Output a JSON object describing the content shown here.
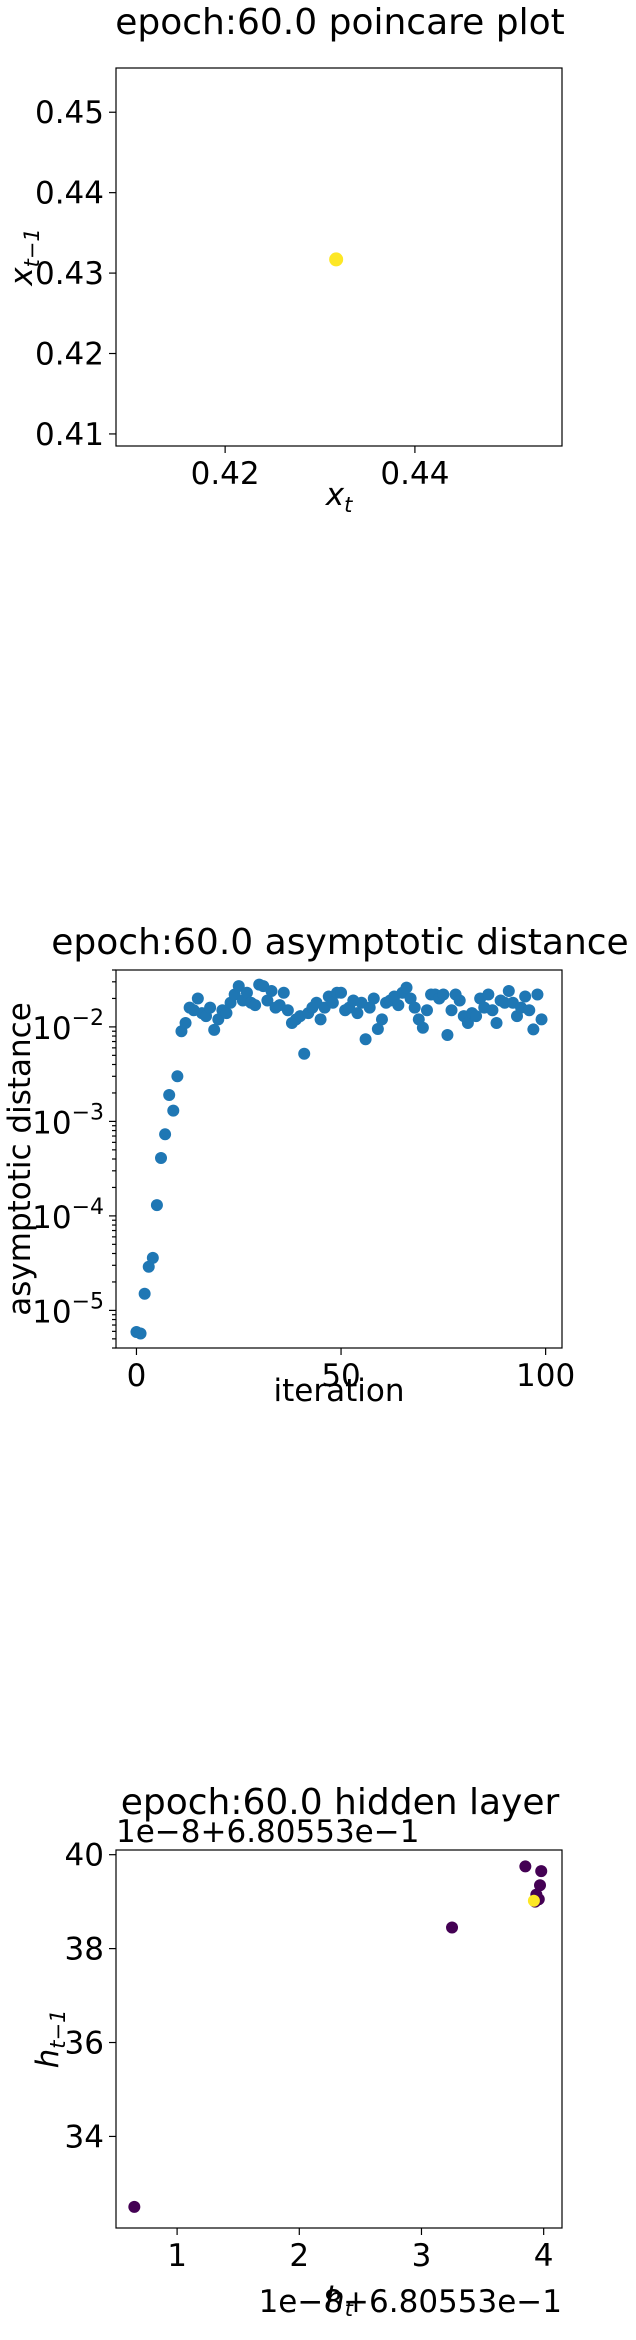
{
  "chart_data": [
    {
      "type": "scatter",
      "title": "epoch:60.0 poincare plot",
      "xlabel": "x_t",
      "ylabel": "x_{t-1}",
      "xlim": [
        0.4085,
        0.4555
      ],
      "ylim": [
        0.4085,
        0.4555
      ],
      "xticks": [
        "0.42",
        "0.44"
      ],
      "yticks": [
        "0.41",
        "0.42",
        "0.43",
        "0.44",
        "0.45"
      ],
      "x": [
        0.4317
      ],
      "y": [
        0.4317
      ],
      "color": "#fde725",
      "grid": false,
      "legend": "none"
    },
    {
      "type": "scatter",
      "title": "epoch:60.0 asymptotic distance",
      "xlabel": "iteration",
      "ylabel": "asymptotic distance",
      "yscale": "log",
      "xlim": [
        -5,
        104
      ],
      "ylim": [
        4e-06,
        0.04
      ],
      "xticks": [
        "0",
        "50",
        "100"
      ],
      "yticks": [
        "10^{-5}",
        "10^{-4}",
        "10^{-3}",
        "10^{-2}"
      ],
      "color": "#1f77b4",
      "x": [
        0,
        1,
        2,
        3,
        4,
        5,
        6,
        7,
        8,
        9,
        10,
        11,
        12,
        13,
        14,
        15,
        16,
        17,
        18,
        19,
        20,
        21,
        22,
        23,
        24,
        25,
        26,
        27,
        28,
        29,
        30,
        31,
        32,
        33,
        34,
        35,
        36,
        37,
        38,
        39,
        40,
        41,
        42,
        43,
        44,
        45,
        46,
        47,
        48,
        49,
        50,
        51,
        52,
        53,
        54,
        55,
        56,
        57,
        58,
        59,
        60,
        61,
        62,
        63,
        64,
        65,
        66,
        67,
        68,
        69,
        70,
        71,
        72,
        73,
        74,
        75,
        76,
        77,
        78,
        79,
        80,
        81,
        82,
        83,
        84,
        85,
        86,
        87,
        88,
        89,
        90,
        91,
        92,
        93,
        94,
        95,
        96,
        97,
        98,
        99
      ],
      "y": [
        5.9e-06,
        5.7e-06,
        1.5e-05,
        2.9e-05,
        3.6e-05,
        0.00013,
        0.00041,
        0.00073,
        0.0019,
        0.0013,
        0.003,
        0.009,
        0.011,
        0.016,
        0.015,
        0.02,
        0.014,
        0.013,
        0.016,
        0.0093,
        0.012,
        0.015,
        0.014,
        0.018,
        0.022,
        0.027,
        0.019,
        0.023,
        0.018,
        0.017,
        0.028,
        0.027,
        0.019,
        0.024,
        0.016,
        0.017,
        0.023,
        0.015,
        0.011,
        0.012,
        0.013,
        0.0052,
        0.014,
        0.016,
        0.018,
        0.012,
        0.016,
        0.021,
        0.018,
        0.023,
        0.023,
        0.015,
        0.016,
        0.019,
        0.014,
        0.018,
        0.0074,
        0.016,
        0.02,
        0.0095,
        0.012,
        0.018,
        0.019,
        0.021,
        0.017,
        0.023,
        0.026,
        0.02,
        0.016,
        0.012,
        0.0098,
        0.015,
        0.022,
        0.022,
        0.02,
        0.022,
        0.0082,
        0.015,
        0.022,
        0.019,
        0.013,
        0.011,
        0.014,
        0.013,
        0.02,
        0.016,
        0.022,
        0.015,
        0.011,
        0.019,
        0.018,
        0.024,
        0.018,
        0.013,
        0.016,
        0.021,
        0.015,
        0.0094,
        0.022,
        0.012
      ]
    },
    {
      "type": "scatter",
      "title": "epoch:60.0 hidden layer",
      "xlabel": "h_t",
      "ylabel": "h_{t-1}",
      "x_offset_text": "1e−8+6.80553e−1",
      "y_offset_text": "1e−8+6.80553e−1",
      "xlim": [
        0.5,
        4.15
      ],
      "ylim": [
        32.05,
        40.1
      ],
      "xticks": [
        "1",
        "2",
        "3",
        "4"
      ],
      "yticks": [
        "34",
        "36",
        "38",
        "40"
      ],
      "x": [
        0.65,
        3.25,
        3.85,
        3.98,
        3.97,
        3.94,
        3.96,
        3.93,
        3.92
      ],
      "y": [
        32.5,
        38.45,
        39.75,
        39.65,
        39.35,
        39.15,
        39.05,
        39.0,
        39.02
      ],
      "colors": [
        "#440154",
        "#440154",
        "#440154",
        "#440154",
        "#440154",
        "#440154",
        "#440154",
        "#440154",
        "#fde725"
      ],
      "grid": false,
      "legend": "none"
    }
  ]
}
